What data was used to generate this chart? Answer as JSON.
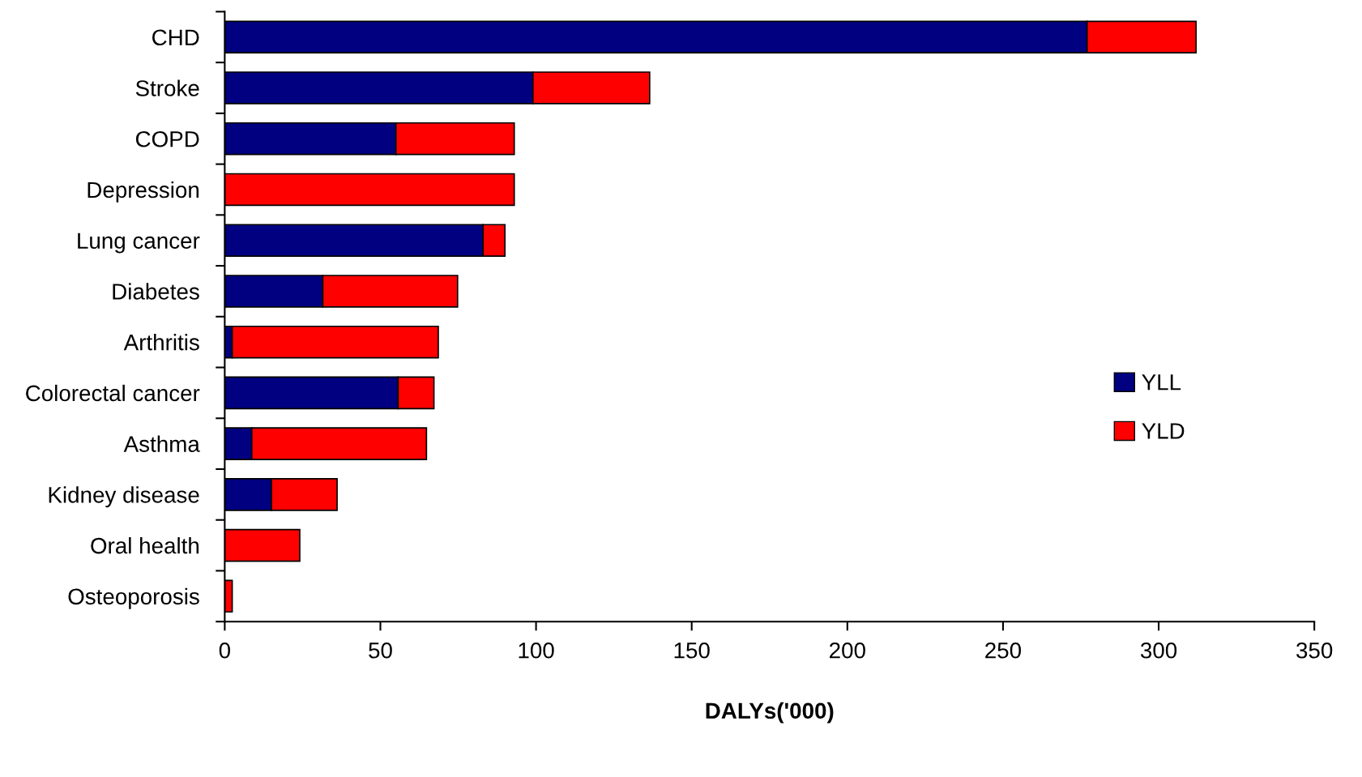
{
  "chart_data": {
    "type": "bar",
    "orientation": "horizontal",
    "stacked": true,
    "xlabel": "DALYs('000)",
    "categories": [
      "CHD",
      "Stroke",
      "COPD",
      "Depression",
      "Lung cancer",
      "Diabetes",
      "Arthritis",
      "Colorectal cancer",
      "Asthma",
      "Kidney disease",
      "Oral health",
      "Osteoporosis"
    ],
    "series": [
      {
        "name": "YLL",
        "color": "#000080",
        "values": [
          277,
          99,
          55,
          0,
          83,
          31.5,
          2.4,
          55.7,
          8.7,
          15,
          0,
          0
        ]
      },
      {
        "name": "YLD",
        "color": "#ff0000",
        "values": [
          35,
          37.5,
          38,
          93,
          7,
          43.3,
          66.2,
          11.5,
          56.1,
          21.1,
          24.1,
          2.4
        ]
      }
    ],
    "xlim": [
      0,
      350
    ],
    "xticks": [
      0,
      50,
      100,
      150,
      200,
      250,
      300,
      350
    ],
    "grid": false,
    "legend": "right"
  }
}
